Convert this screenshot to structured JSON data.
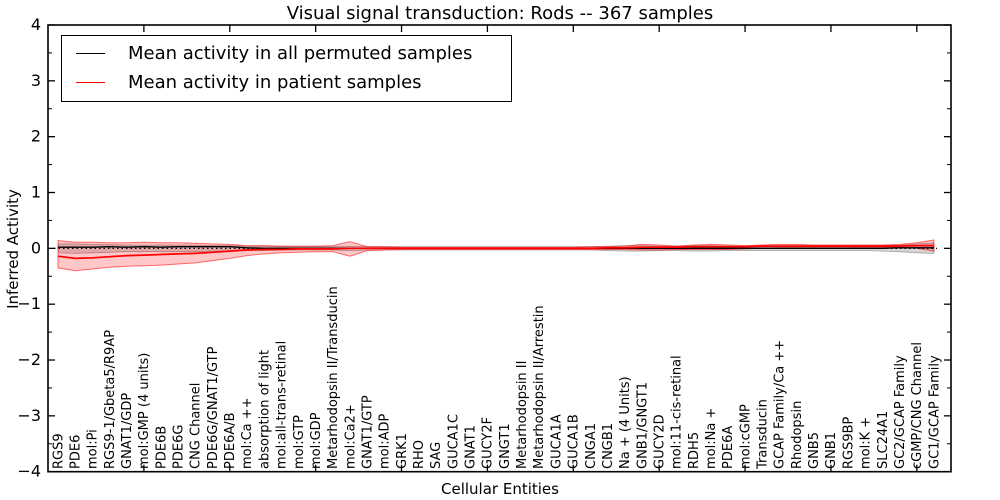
{
  "chart_data": {
    "type": "line",
    "title": "Visual signal transduction: Rods -- 367 samples",
    "xlabel": "Cellular Entities",
    "ylabel": "Inferred Activity",
    "ylim": [
      -4,
      4
    ],
    "ytick_labels": [
      "4",
      "3",
      "2",
      "1",
      "0",
      "−1",
      "−2",
      "−3",
      "−4"
    ],
    "ytick_values": [
      4,
      3,
      2,
      1,
      0,
      -1,
      -2,
      -3,
      -4
    ],
    "grid": false,
    "legend_position": "upper-left",
    "colors": {
      "permuted_line": "#000000",
      "patient_line": "#ff0000",
      "permuted_band": "rgba(0,0,0,0.16)",
      "permuted_band_edge": "rgba(0,0,0,0.30)",
      "patient_band": "rgba(255,0,0,0.22)",
      "patient_band_edge": "rgba(255,0,0,0.55)",
      "zero_line": "#000000"
    },
    "legend": [
      {
        "label": "Mean activity in all permuted samples",
        "color": "#000000"
      },
      {
        "label": "Mean activity in patient samples",
        "color": "#ff0000"
      }
    ],
    "categories": [
      "RGS9",
      "PDE6",
      "mol:Pi",
      "RGS9-1/Gbeta5/R9AP",
      "GNAT1/GDP",
      "mol:GMP (4 units)",
      "PDE6B",
      "PDE6G",
      "CNG Channel",
      "PDE6G/GNAT1/GTP",
      "PDE6A/B",
      "mol:Ca ++",
      "absorption of light",
      "mol:all-trans-retinal",
      "mol:GTP",
      "mol:GDP",
      "Metarhodopsin II/Transducin",
      "mol:Ca2+",
      "GNAT1/GTP",
      "mol:ADP",
      "GRK1",
      "RHO",
      "SAG",
      "GUCA1C",
      "GNAT1",
      "GUCY2F",
      "GNGT1",
      "Metarhodopsin II",
      "Metarhodopsin II/Arrestin",
      "GUCA1A",
      "GUCA1B",
      "CNGA1",
      "CNGB1",
      "Na + (4 Units)",
      "GNB1/GNGT1",
      "GUCY2D",
      "mol:11-cis-retinal",
      "RDH5",
      "mol:Na +",
      "PDE6A",
      "mol:cGMP",
      "Transducin",
      "GCAP Family/Ca ++",
      "Rhodopsin",
      "GNB5",
      "GNB1",
      "RGS9BP",
      "mol:K +",
      "SLC24A1",
      "GC2/GCAP Family",
      "cGMP/CNG Channel",
      "GC1/GCAP Family"
    ],
    "series": [
      {
        "name": "Mean activity in all permuted samples",
        "values": [
          0.02,
          0.02,
          0.02,
          0.03,
          0.02,
          0.03,
          0.02,
          0.03,
          0.03,
          0.03,
          0.03,
          0.01,
          0.0,
          0.0,
          0.0,
          0.0,
          0.0,
          0.0,
          0.0,
          0.0,
          0.0,
          0.0,
          0.0,
          0.0,
          0.0,
          0.0,
          0.0,
          0.0,
          0.0,
          0.0,
          0.0,
          0.0,
          0.0,
          0.0,
          0.0,
          0.0,
          0.0,
          0.0,
          0.0,
          0.0,
          0.0,
          0.0,
          0.0,
          0.0,
          0.0,
          0.0,
          0.0,
          0.0,
          0.0,
          0.01,
          0.01,
          0.01
        ],
        "band_upper": [
          0.08,
          0.08,
          0.07,
          0.07,
          0.06,
          0.06,
          0.06,
          0.06,
          0.06,
          0.05,
          0.05,
          0.04,
          0.04,
          0.03,
          0.03,
          0.03,
          0.03,
          0.04,
          0.03,
          0.03,
          0.03,
          0.03,
          0.03,
          0.03,
          0.03,
          0.03,
          0.03,
          0.03,
          0.03,
          0.03,
          0.03,
          0.03,
          0.04,
          0.05,
          0.05,
          0.04,
          0.04,
          0.05,
          0.05,
          0.04,
          0.04,
          0.04,
          0.04,
          0.04,
          0.04,
          0.04,
          0.04,
          0.04,
          0.05,
          0.06,
          0.08,
          0.1
        ],
        "band_lower": [
          -0.08,
          -0.09,
          -0.08,
          -0.07,
          -0.06,
          -0.06,
          -0.06,
          -0.06,
          -0.06,
          -0.05,
          -0.05,
          -0.04,
          -0.04,
          -0.03,
          -0.03,
          -0.03,
          -0.03,
          -0.04,
          -0.03,
          -0.03,
          -0.03,
          -0.03,
          -0.03,
          -0.03,
          -0.03,
          -0.03,
          -0.03,
          -0.03,
          -0.03,
          -0.03,
          -0.03,
          -0.03,
          -0.04,
          -0.05,
          -0.05,
          -0.04,
          -0.04,
          -0.05,
          -0.05,
          -0.04,
          -0.04,
          -0.04,
          -0.04,
          -0.04,
          -0.04,
          -0.04,
          -0.04,
          -0.04,
          -0.05,
          -0.06,
          -0.08,
          -0.09
        ]
      },
      {
        "name": "Mean activity in patient samples",
        "values": [
          -0.14,
          -0.18,
          -0.17,
          -0.15,
          -0.13,
          -0.12,
          -0.11,
          -0.1,
          -0.09,
          -0.07,
          -0.05,
          -0.03,
          -0.02,
          -0.02,
          -0.01,
          -0.01,
          -0.01,
          0.0,
          0.0,
          0.0,
          0.0,
          0.0,
          0.0,
          0.0,
          0.0,
          0.0,
          0.0,
          0.0,
          0.0,
          0.0,
          0.0,
          0.0,
          0.01,
          0.01,
          0.02,
          0.02,
          0.02,
          0.03,
          0.03,
          0.03,
          0.03,
          0.04,
          0.04,
          0.04,
          0.04,
          0.04,
          0.04,
          0.04,
          0.04,
          0.04,
          0.05,
          0.05
        ],
        "band_upper": [
          0.14,
          0.11,
          0.11,
          0.1,
          0.1,
          0.11,
          0.1,
          0.1,
          0.09,
          0.08,
          0.07,
          0.05,
          0.05,
          0.04,
          0.04,
          0.04,
          0.05,
          0.12,
          0.03,
          0.03,
          0.02,
          0.02,
          0.02,
          0.02,
          0.02,
          0.02,
          0.02,
          0.02,
          0.02,
          0.02,
          0.02,
          0.03,
          0.03,
          0.04,
          0.07,
          0.06,
          0.04,
          0.06,
          0.07,
          0.06,
          0.05,
          0.06,
          0.07,
          0.07,
          0.06,
          0.06,
          0.06,
          0.06,
          0.06,
          0.07,
          0.1,
          0.15
        ],
        "band_lower": [
          -0.35,
          -0.4,
          -0.37,
          -0.34,
          -0.32,
          -0.31,
          -0.3,
          -0.28,
          -0.26,
          -0.22,
          -0.18,
          -0.13,
          -0.1,
          -0.08,
          -0.07,
          -0.06,
          -0.06,
          -0.14,
          -0.04,
          -0.03,
          -0.02,
          -0.02,
          -0.02,
          -0.02,
          -0.02,
          -0.02,
          -0.02,
          -0.02,
          -0.02,
          -0.02,
          -0.02,
          -0.02,
          -0.02,
          -0.02,
          -0.03,
          -0.03,
          -0.02,
          -0.02,
          -0.02,
          -0.02,
          -0.01,
          0.0,
          0.01,
          0.01,
          0.01,
          0.01,
          0.01,
          0.02,
          0.02,
          0.01,
          0.0,
          -0.05
        ]
      }
    ],
    "zero_reference_line": 0
  }
}
